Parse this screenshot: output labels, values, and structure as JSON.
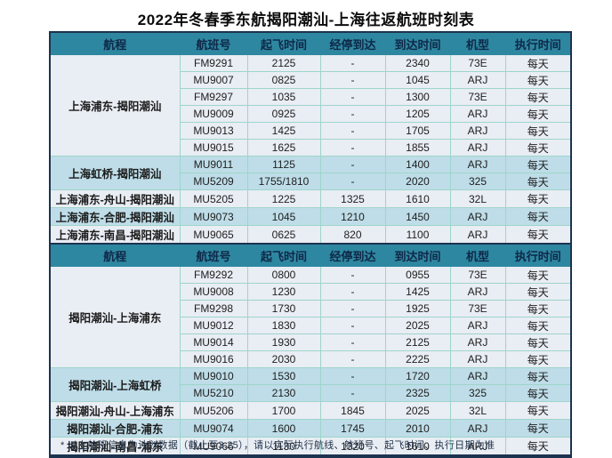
{
  "title": "2022年冬春季东航揭阳潮汕-上海往返航班时刻表",
  "columns": [
    "航程",
    "航班号",
    "起飞时间",
    "经停到达",
    "到达时间",
    "机型",
    "执行时间"
  ],
  "sections": [
    {
      "groups": [
        {
          "route": "上海浦东-揭阳潮汕",
          "shade": "light",
          "flights": [
            [
              "FM9291",
              "2125",
              "-",
              "2340",
              "73E",
              "每天"
            ],
            [
              "MU9007",
              "0825",
              "-",
              "1045",
              "ARJ",
              "每天"
            ],
            [
              "FM9297",
              "1035",
              "-",
              "1300",
              "73E",
              "每天"
            ],
            [
              "MU9009",
              "0925",
              "-",
              "1205",
              "ARJ",
              "每天"
            ],
            [
              "MU9013",
              "1425",
              "-",
              "1705",
              "ARJ",
              "每天"
            ],
            [
              "MU9015",
              "1625",
              "-",
              "1855",
              "ARJ",
              "每天"
            ]
          ]
        },
        {
          "route": "上海虹桥-揭阳潮汕",
          "shade": "blue",
          "flights": [
            [
              "MU9011",
              "1125",
              "-",
              "1400",
              "ARJ",
              "每天"
            ],
            [
              "MU5209",
              "1755/1810",
              "-",
              "2020",
              "325",
              "每天"
            ]
          ]
        },
        {
          "route": "上海浦东-舟山-揭阳潮汕",
          "shade": "light",
          "flights": [
            [
              "MU5205",
              "1225",
              "1325",
              "1610",
              "32L",
              "每天"
            ]
          ]
        },
        {
          "route": "上海浦东-合肥-揭阳潮汕",
          "shade": "blue",
          "flights": [
            [
              "MU9073",
              "1045",
              "1210",
              "1450",
              "ARJ",
              "每天"
            ]
          ]
        },
        {
          "route": "上海浦东-南昌-揭阳潮汕",
          "shade": "light",
          "flights": [
            [
              "MU9065",
              "0625",
              "820",
              "1100",
              "ARJ",
              "每天"
            ]
          ]
        }
      ]
    },
    {
      "groups": [
        {
          "route": "揭阳潮汕-上海浦东",
          "shade": "light",
          "flights": [
            [
              "FM9292",
              "0800",
              "-",
              "0955",
              "73E",
              "每天"
            ],
            [
              "MU9008",
              "1230",
              "-",
              "1425",
              "ARJ",
              "每天"
            ],
            [
              "FM9298",
              "1730",
              "-",
              "1925",
              "73E",
              "每天"
            ],
            [
              "MU9012",
              "1830",
              "-",
              "2025",
              "ARJ",
              "每天"
            ],
            [
              "MU9014",
              "1930",
              "-",
              "2125",
              "ARJ",
              "每天"
            ],
            [
              "MU9016",
              "2030",
              "-",
              "2225",
              "ARJ",
              "每天"
            ]
          ]
        },
        {
          "route": "揭阳潮汕-上海虹桥",
          "shade": "blue",
          "flights": [
            [
              "MU9010",
              "1530",
              "-",
              "1720",
              "ARJ",
              "每天"
            ],
            [
              "MU5210",
              "2130",
              "-",
              "2325",
              "325",
              "每天"
            ]
          ]
        },
        {
          "route": "揭阳潮汕-舟山-上海浦东",
          "shade": "light",
          "flights": [
            [
              "MU5206",
              "1700",
              "1845",
              "2025",
              "32L",
              "每天"
            ]
          ]
        },
        {
          "route": "揭阳潮汕-合肥-浦东",
          "shade": "blue",
          "flights": [
            [
              "MU9074",
              "1600",
              "1745",
              "2010",
              "ARJ",
              "每天"
            ]
          ]
        },
        {
          "route": "揭阳潮汕-南昌-浦东",
          "shade": "light",
          "flights": [
            [
              "MU9066",
              "1130",
              "1320",
              "1610",
              "ARJ",
              "每天"
            ]
          ]
        }
      ]
    }
  ],
  "footnote": "* 以上航班信息为计划数据（截止至3.25），请以实际执行航线、航班号、起飞时间、执行日期为准",
  "colors": {
    "header_bg": "#2e87a0",
    "header_text": "#0f2848",
    "row_light": "#e9edf4",
    "row_blue": "#bedde8",
    "grid_line": "#9ed5cb",
    "outer_border": "#1c3350"
  }
}
